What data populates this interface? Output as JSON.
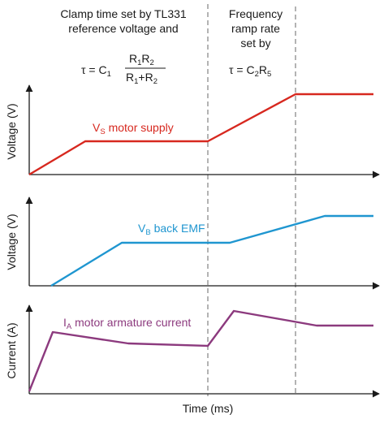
{
  "colors": {
    "axis": "#1a1a1a",
    "guide": "#8a8a8a",
    "supply": "#d7281f",
    "emf": "#1f96d0",
    "current": "#8c3a7e"
  },
  "header": {
    "clamp_line1": "Clamp time set by TL331",
    "clamp_line2": "reference voltage and",
    "tau_prefix": "τ = C",
    "tau_c_sub": "1",
    "frac_num_a": "R",
    "frac_num_a_sub": "1",
    "frac_num_b": "R",
    "frac_num_b_sub": "2",
    "frac_den_a": "R",
    "frac_den_a_sub": "1",
    "frac_den_mid": "+R",
    "frac_den_b_sub": "2",
    "ramp_line1": "Frequency",
    "ramp_line2": "ramp rate",
    "ramp_line3": "set by",
    "ramp_tau_prefix": "τ = C",
    "ramp_tau_c_sub": "2",
    "ramp_tau_r": "R",
    "ramp_tau_r_sub": "5"
  },
  "panels": {
    "supply": {
      "ylabel": "Voltage (V)",
      "label_main": "V",
      "label_sub": "S",
      "label_rest": " motor supply"
    },
    "emf": {
      "ylabel": "Voltage (V)",
      "label_main": "V",
      "label_sub": "B",
      "label_rest": " back EMF"
    },
    "current": {
      "ylabel": "Current (A)",
      "label_main": "I",
      "label_sub": "A",
      "label_rest": " motor armature current"
    }
  },
  "xlabel": "Time (ms)"
}
